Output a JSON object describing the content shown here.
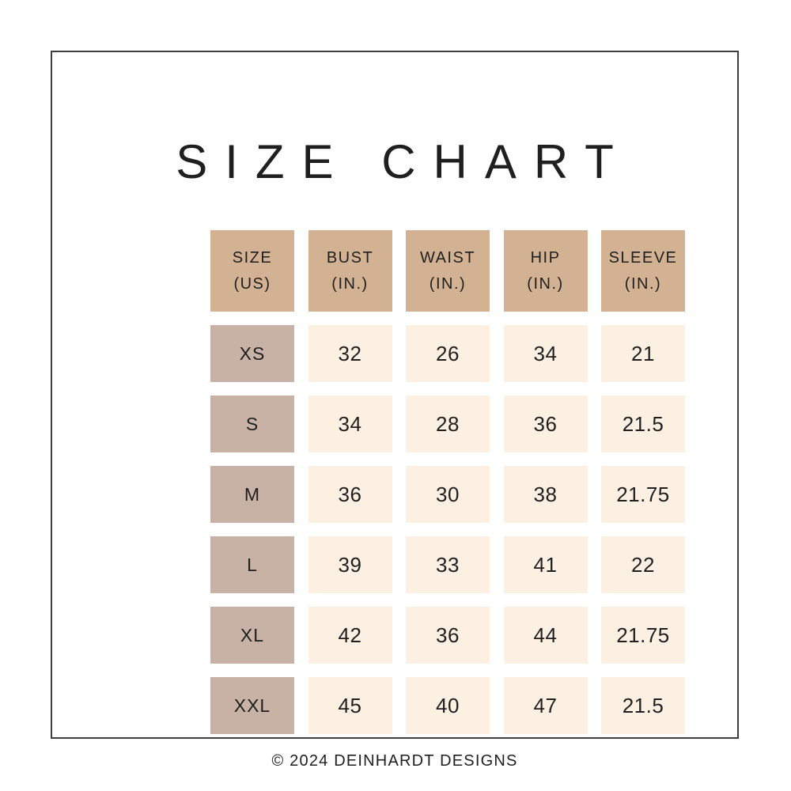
{
  "title": "SIZE CHART",
  "footer": "© 2024 DEINHARDT DESIGNS",
  "table": {
    "headers": [
      {
        "line1": "SIZE",
        "line2": "(US)"
      },
      {
        "line1": "BUST",
        "line2": "(IN.)"
      },
      {
        "line1": "WAIST",
        "line2": "(IN.)"
      },
      {
        "line1": "HIP",
        "line2": "(IN.)"
      },
      {
        "line1": "SLEEVE",
        "line2": "(IN.)"
      }
    ],
    "rows": [
      {
        "size": "XS",
        "bust": "32",
        "waist": "26",
        "hip": "34",
        "sleeve": "21"
      },
      {
        "size": "S",
        "bust": "34",
        "waist": "28",
        "hip": "36",
        "sleeve": "21.5"
      },
      {
        "size": "M",
        "bust": "36",
        "waist": "30",
        "hip": "38",
        "sleeve": "21.75"
      },
      {
        "size": "L",
        "bust": "39",
        "waist": "33",
        "hip": "41",
        "sleeve": "22"
      },
      {
        "size": "XL",
        "bust": "42",
        "waist": "36",
        "hip": "44",
        "sleeve": "21.75"
      },
      {
        "size": "XXL",
        "bust": "45",
        "waist": "40",
        "hip": "47",
        "sleeve": "21.5"
      }
    ]
  },
  "chart_data": {
    "type": "table",
    "title": "SIZE CHART",
    "columns": [
      "SIZE (US)",
      "BUST (IN.)",
      "WAIST (IN.)",
      "HIP (IN.)",
      "SLEEVE (IN.)"
    ],
    "rows": [
      [
        "XS",
        32,
        26,
        34,
        21
      ],
      [
        "S",
        34,
        28,
        36,
        21.5
      ],
      [
        "M",
        36,
        30,
        38,
        21.75
      ],
      [
        "L",
        39,
        33,
        41,
        22
      ],
      [
        "XL",
        42,
        36,
        44,
        21.75
      ],
      [
        "XXL",
        45,
        40,
        47,
        21.5
      ]
    ],
    "footer": "© 2024 DEINHARDT DESIGNS"
  },
  "colors": {
    "header_cell": "#d2b292",
    "size_cell": "#c7b2a5",
    "data_cell": "#fbf0e1",
    "text": "#1f1f1f",
    "frame_border": "#3e3e3e"
  }
}
